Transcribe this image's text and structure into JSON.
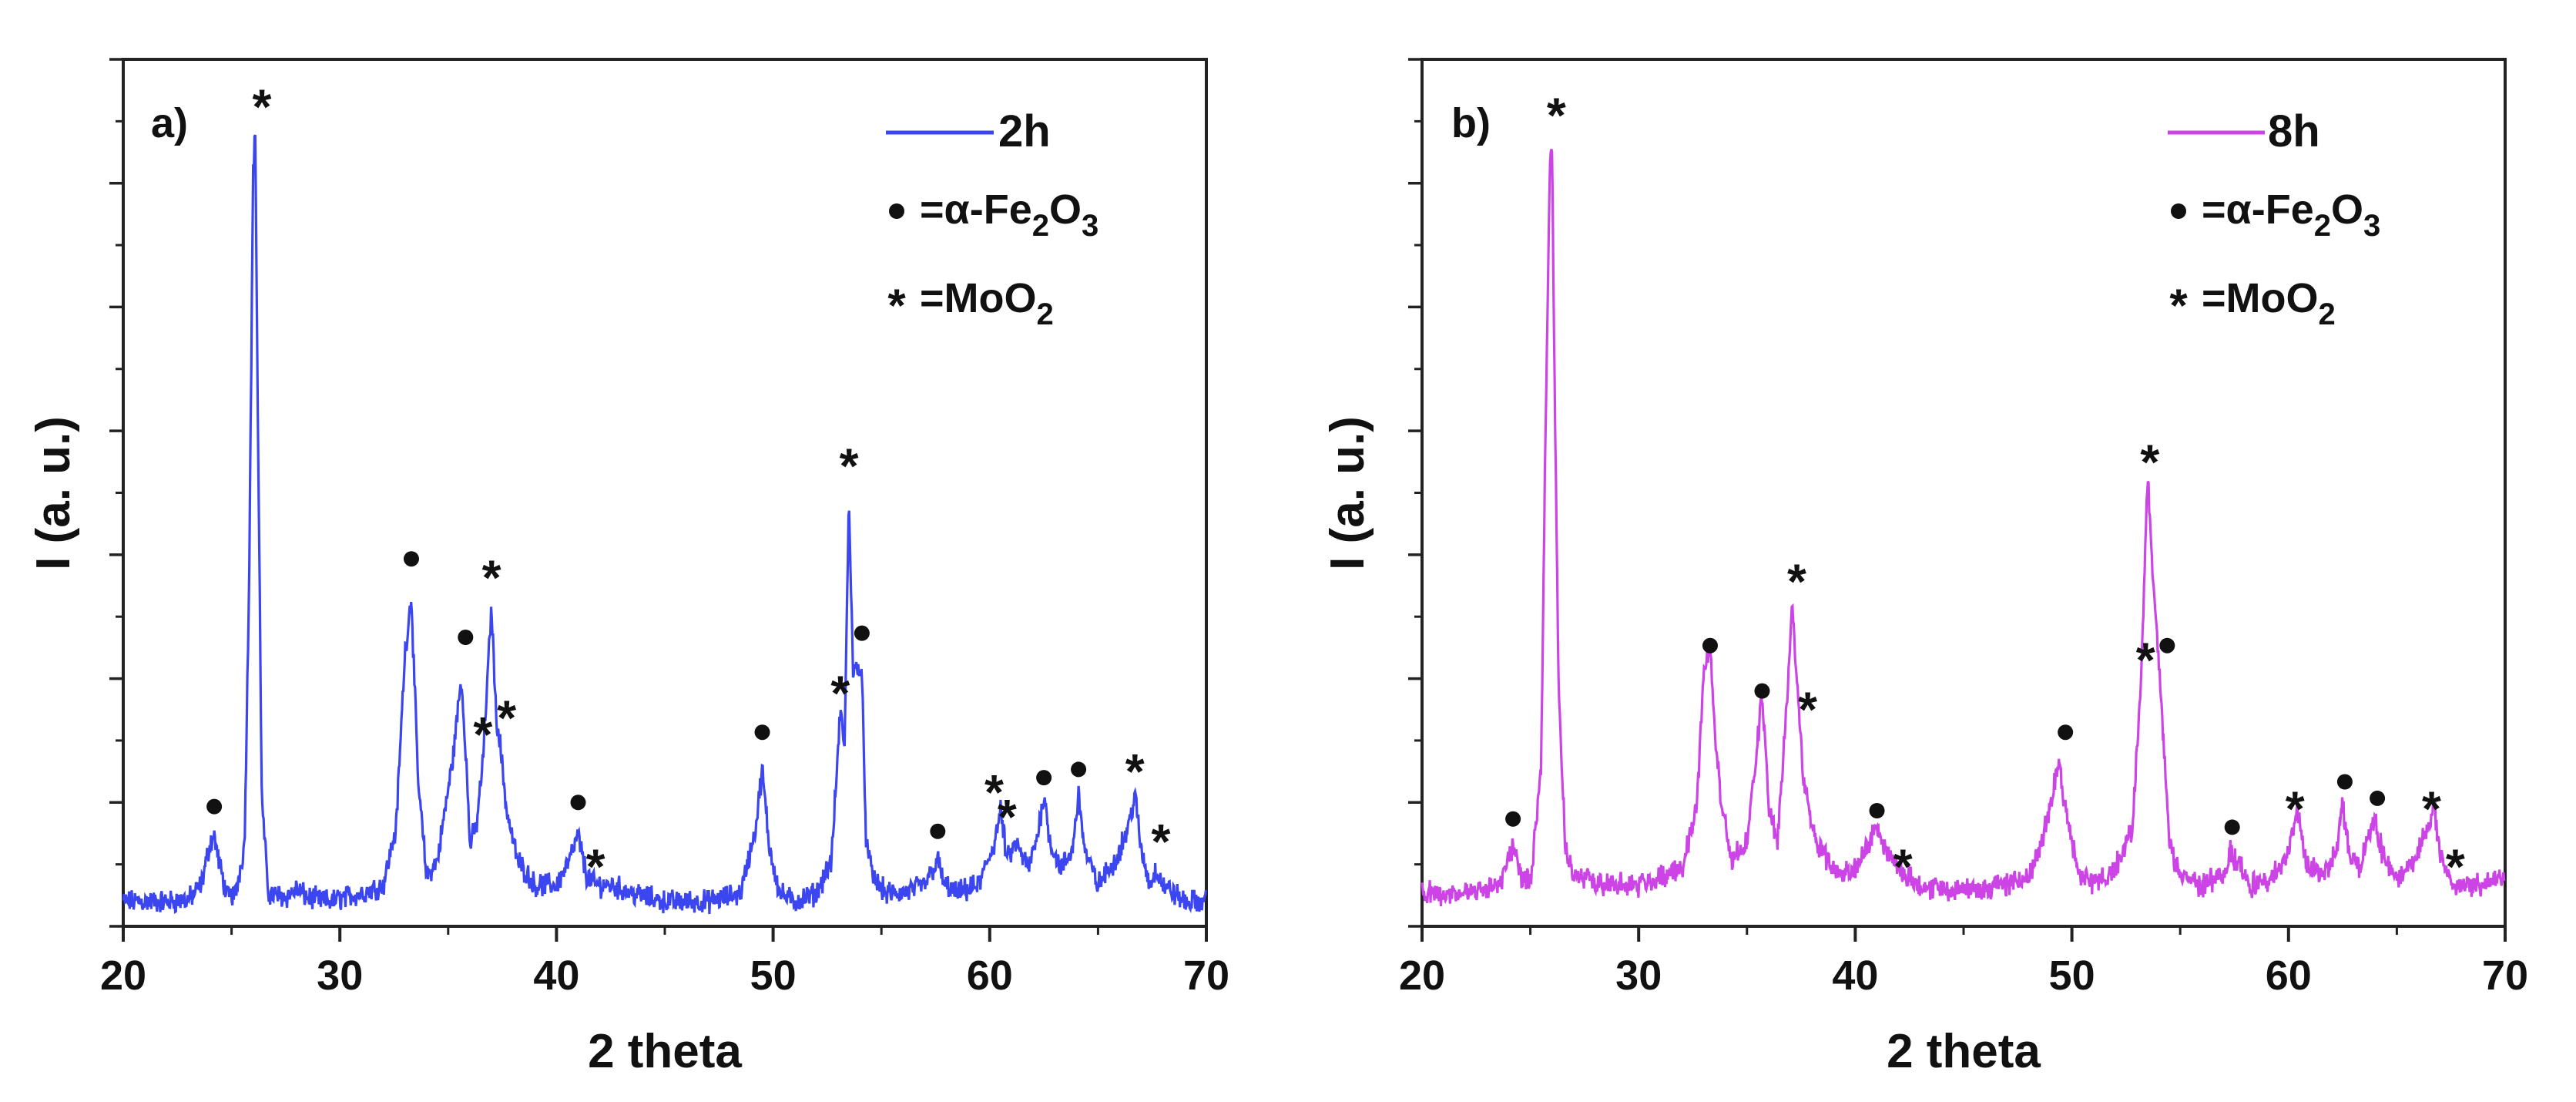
{
  "chart_data": [
    {
      "type": "line",
      "panel_label": "a)",
      "series": [
        {
          "name": "2h",
          "color": "#3b45f0",
          "x": [
            20,
            21,
            22,
            23,
            23.6,
            24,
            24.2,
            24.4,
            24.8,
            25.2,
            25.6,
            25.8,
            26,
            26.1,
            26.2,
            26.4,
            26.7,
            27.5,
            28,
            28.5,
            29.5,
            31,
            32,
            32.6,
            33.0,
            33.3,
            33.6,
            34,
            34.5,
            35.2,
            35.6,
            35.8,
            36.0,
            36.3,
            36.6,
            36.9,
            37.0,
            37.2,
            37.4,
            37.7,
            38.2,
            39,
            40,
            40.6,
            41,
            41.4,
            41.8,
            42.5,
            43.5,
            45,
            47,
            48.5,
            49.2,
            49.5,
            49.8,
            50.3,
            51,
            52,
            52.7,
            53.1,
            53.3,
            53.5,
            53.7,
            53.9,
            54.1,
            54.3,
            54.6,
            55.2,
            56,
            57,
            57.4,
            57.6,
            57.9,
            58.5,
            59.5,
            60.2,
            60.5,
            60.8,
            61.2,
            61.8,
            62.2,
            62.5,
            62.8,
            63.3,
            63.8,
            64.1,
            64.4,
            65,
            65.8,
            66.4,
            66.7,
            67.0,
            67.4,
            67.7,
            68,
            68.5,
            69,
            70
          ],
          "y": [
            0.03,
            0.03,
            0.03,
            0.032,
            0.05,
            0.1,
            0.11,
            0.08,
            0.035,
            0.04,
            0.1,
            0.4,
            0.92,
            0.96,
            0.65,
            0.15,
            0.04,
            0.035,
            0.045,
            0.035,
            0.03,
            0.04,
            0.05,
            0.12,
            0.33,
            0.4,
            0.18,
            0.06,
            0.08,
            0.2,
            0.3,
            0.22,
            0.1,
            0.12,
            0.2,
            0.34,
            0.39,
            0.26,
            0.22,
            0.14,
            0.08,
            0.05,
            0.05,
            0.08,
            0.11,
            0.06,
            0.05,
            0.05,
            0.04,
            0.03,
            0.03,
            0.04,
            0.12,
            0.19,
            0.1,
            0.04,
            0.03,
            0.04,
            0.08,
            0.26,
            0.22,
            0.52,
            0.3,
            0.32,
            0.3,
            0.1,
            0.06,
            0.04,
            0.04,
            0.05,
            0.07,
            0.08,
            0.05,
            0.04,
            0.05,
            0.1,
            0.14,
            0.08,
            0.1,
            0.07,
            0.11,
            0.16,
            0.1,
            0.07,
            0.09,
            0.16,
            0.09,
            0.05,
            0.08,
            0.12,
            0.16,
            0.09,
            0.05,
            0.07,
            0.05,
            0.04,
            0.03,
            0.03
          ]
        }
      ],
      "markers": [
        {
          "symbol": "•",
          "x": 24.2,
          "y": 0.145
        },
        {
          "symbol": "*",
          "x": 26.4,
          "y": 1.0
        },
        {
          "symbol": "•",
          "x": 33.3,
          "y": 0.445
        },
        {
          "symbol": "•",
          "x": 35.8,
          "y": 0.35
        },
        {
          "symbol": "*",
          "x": 37.0,
          "y": 0.43
        },
        {
          "symbol": "*",
          "x": 36.6,
          "y": 0.24
        },
        {
          "symbol": "*",
          "x": 37.7,
          "y": 0.26
        },
        {
          "symbol": "•",
          "x": 41.0,
          "y": 0.15
        },
        {
          "symbol": "*",
          "x": 41.8,
          "y": 0.08
        },
        {
          "symbol": "•",
          "x": 49.5,
          "y": 0.235
        },
        {
          "symbol": "*",
          "x": 53.1,
          "y": 0.29
        },
        {
          "symbol": "*",
          "x": 53.5,
          "y": 0.565
        },
        {
          "symbol": "•",
          "x": 54.1,
          "y": 0.355
        },
        {
          "symbol": "•",
          "x": 57.6,
          "y": 0.115
        },
        {
          "symbol": "*",
          "x": 60.2,
          "y": 0.17
        },
        {
          "symbol": "*",
          "x": 60.8,
          "y": 0.14
        },
        {
          "symbol": "•",
          "x": 62.5,
          "y": 0.18
        },
        {
          "symbol": "•",
          "x": 64.1,
          "y": 0.19
        },
        {
          "symbol": "*",
          "x": 66.7,
          "y": 0.195
        },
        {
          "symbol": "*",
          "x": 67.9,
          "y": 0.11
        }
      ],
      "xlabel": "2 theta",
      "ylabel": "I (a. u.)",
      "xlim": [
        20,
        70
      ],
      "ylim": [
        0,
        1.05
      ],
      "xticks": [
        20,
        30,
        40,
        50,
        60,
        70
      ],
      "legend": {
        "series_label": "2h",
        "entries": [
          {
            "symbol": "•",
            "text": "=α-Fe",
            "sub1": "2",
            "mid": "O",
            "sub2": "3"
          },
          {
            "symbol": "*",
            "text": "=MoO",
            "sub1": "2",
            "mid": "",
            "sub2": ""
          }
        ]
      },
      "grid": false
    },
    {
      "type": "line",
      "panel_label": "b)",
      "series": [
        {
          "name": "8h",
          "color": "#cc44e6",
          "x": [
            20,
            21,
            22,
            23,
            23.8,
            24.2,
            24.6,
            25,
            25.5,
            25.7,
            25.9,
            26,
            26.1,
            26.3,
            26.6,
            27,
            28,
            29,
            30,
            31,
            32,
            32.7,
            33.0,
            33.3,
            33.6,
            34.2,
            35,
            35.4,
            35.7,
            36.0,
            36.4,
            36.8,
            37.1,
            37.3,
            37.6,
            38.2,
            39,
            40,
            40.6,
            41,
            41.5,
            42,
            43,
            44,
            46,
            48,
            48.8,
            49.4,
            49.8,
            50.4,
            51,
            52,
            52.8,
            53.2,
            53.5,
            53.8,
            54.1,
            54.5,
            55,
            56,
            57,
            57.3,
            57.6,
            58.2,
            59,
            60,
            60.4,
            60.8,
            61.5,
            62.2,
            62.5,
            62.8,
            63.3,
            63.8,
            64,
            64.3,
            65,
            65.8,
            66.5,
            66.7,
            67,
            67.5,
            68,
            69,
            70
          ],
          "y": [
            0.04,
            0.04,
            0.04,
            0.045,
            0.06,
            0.1,
            0.06,
            0.05,
            0.2,
            0.6,
            0.92,
            0.95,
            0.7,
            0.3,
            0.1,
            0.06,
            0.055,
            0.05,
            0.05,
            0.06,
            0.07,
            0.15,
            0.31,
            0.34,
            0.2,
            0.08,
            0.1,
            0.2,
            0.28,
            0.15,
            0.1,
            0.25,
            0.39,
            0.3,
            0.18,
            0.1,
            0.07,
            0.07,
            0.1,
            0.12,
            0.09,
            0.07,
            0.05,
            0.045,
            0.045,
            0.06,
            0.12,
            0.2,
            0.12,
            0.06,
            0.05,
            0.07,
            0.12,
            0.3,
            0.55,
            0.4,
            0.28,
            0.1,
            0.06,
            0.05,
            0.06,
            0.09,
            0.08,
            0.05,
            0.05,
            0.09,
            0.14,
            0.08,
            0.06,
            0.09,
            0.15,
            0.09,
            0.07,
            0.12,
            0.13,
            0.09,
            0.06,
            0.08,
            0.12,
            0.15,
            0.09,
            0.05,
            0.05,
            0.05,
            0.06
          ]
        }
      ],
      "markers": [
        {
          "symbol": "•",
          "x": 24.2,
          "y": 0.13
        },
        {
          "symbol": "*",
          "x": 26.2,
          "y": 0.99
        },
        {
          "symbol": "•",
          "x": 33.3,
          "y": 0.34
        },
        {
          "symbol": "•",
          "x": 35.7,
          "y": 0.285
        },
        {
          "symbol": "*",
          "x": 37.3,
          "y": 0.425
        },
        {
          "symbol": "*",
          "x": 37.8,
          "y": 0.27
        },
        {
          "symbol": "•",
          "x": 41.0,
          "y": 0.14
        },
        {
          "symbol": "*",
          "x": 42.2,
          "y": 0.08
        },
        {
          "symbol": "•",
          "x": 49.7,
          "y": 0.235
        },
        {
          "symbol": "*",
          "x": 53.4,
          "y": 0.33
        },
        {
          "symbol": "*",
          "x": 53.6,
          "y": 0.57
        },
        {
          "symbol": "•",
          "x": 54.4,
          "y": 0.34
        },
        {
          "symbol": "•",
          "x": 57.4,
          "y": 0.12
        },
        {
          "symbol": "*",
          "x": 60.3,
          "y": 0.15
        },
        {
          "symbol": "•",
          "x": 62.6,
          "y": 0.175
        },
        {
          "symbol": "•",
          "x": 64.1,
          "y": 0.155
        },
        {
          "symbol": "*",
          "x": 66.6,
          "y": 0.15
        },
        {
          "symbol": "*",
          "x": 67.7,
          "y": 0.08
        }
      ],
      "xlabel": "2 theta",
      "ylabel": "I (a. u.)",
      "xlim": [
        20,
        70
      ],
      "ylim": [
        0,
        1.05
      ],
      "xticks": [
        20,
        30,
        40,
        50,
        60,
        70
      ],
      "legend": {
        "series_label": "8h",
        "entries": [
          {
            "symbol": "•",
            "text": "=α-Fe",
            "sub1": "2",
            "mid": "O",
            "sub2": "3"
          },
          {
            "symbol": "*",
            "text": "=MoO",
            "sub1": "2",
            "mid": "",
            "sub2": ""
          }
        ]
      },
      "grid": false
    }
  ]
}
